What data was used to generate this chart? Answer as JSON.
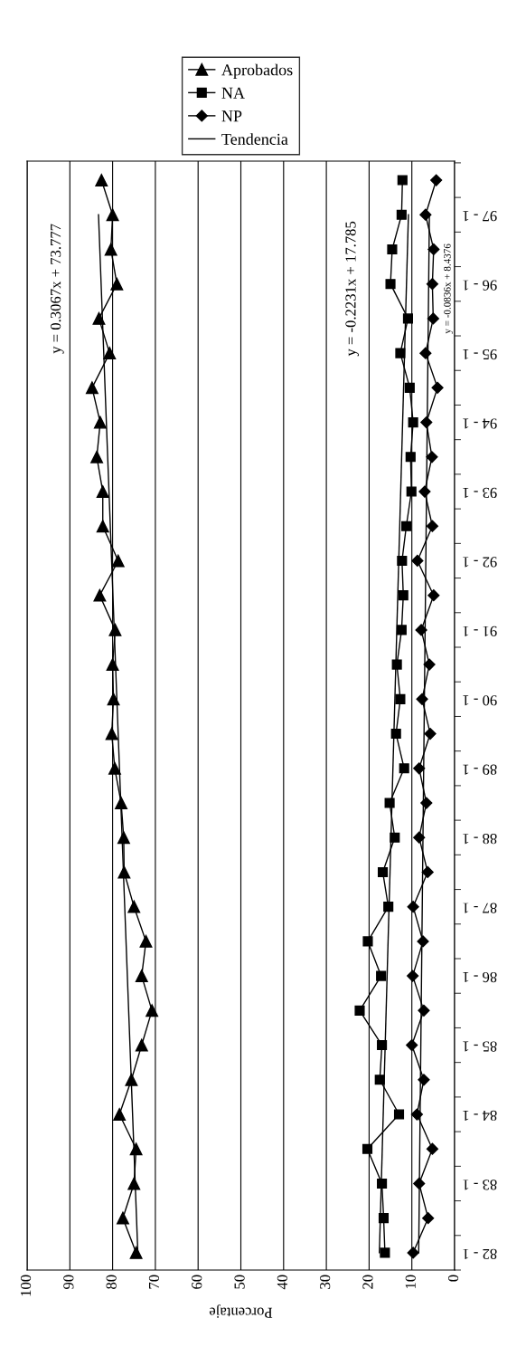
{
  "chart_data": {
    "type": "line",
    "orientation": "horizontal",
    "xlabel": "Porcentaje",
    "categories": [
      null,
      "97 - 1",
      null,
      "96 - 1",
      null,
      "95 - 1",
      null,
      "94 - 1",
      null,
      "93 - 1",
      null,
      "92 - 1",
      null,
      "91 - 1",
      null,
      "90 - 1",
      null,
      "89 - 1",
      null,
      "88 - 1",
      null,
      "87 - 1",
      null,
      "86 - 1",
      null,
      "85 - 1",
      null,
      "84 - 1",
      null,
      "83 - 1",
      null,
      "82 - 1"
    ],
    "series": [
      {
        "name": "Aprobados",
        "color": "#000000",
        "marker": "triangle",
        "values": [
          82.6,
          80.0,
          80.4,
          79.0,
          83.2,
          80.7,
          84.8,
          82.9,
          83.7,
          82.3,
          82.3,
          78.7,
          83.0,
          79.4,
          80.0,
          79.8,
          80.2,
          79.5,
          78.0,
          77.4,
          77.3,
          75.0,
          72.2,
          73.2,
          70.8,
          73.2,
          75.6,
          78.4,
          74.5,
          75.0,
          77.6,
          74.5
        ]
      },
      {
        "name": "NA",
        "color": "#000000",
        "marker": "square",
        "values": [
          12.2,
          12.4,
          14.6,
          15.0,
          10.9,
          12.7,
          10.5,
          9.7,
          10.3,
          10.1,
          11.3,
          12.3,
          12.0,
          12.4,
          13.5,
          12.7,
          13.7,
          11.8,
          15.2,
          14.0,
          16.8,
          15.5,
          20.3,
          17.2,
          22.2,
          17.0,
          17.5,
          13.0,
          20.4,
          17.0,
          16.6,
          16.3
        ]
      },
      {
        "name": "NP",
        "color": "#000000",
        "marker": "diamond",
        "values": [
          4.3,
          6.8,
          4.9,
          5.2,
          5.0,
          6.8,
          4.0,
          6.6,
          5.3,
          7.0,
          5.2,
          8.7,
          4.9,
          7.8,
          5.9,
          7.6,
          5.7,
          8.3,
          6.6,
          8.3,
          6.3,
          9.7,
          7.4,
          9.8,
          7.2,
          10.0,
          7.2,
          8.8,
          5.2,
          8.3,
          6.2,
          9.7
        ]
      },
      {
        "name": "Tendencia",
        "color": "#000000",
        "marker": "none",
        "x": [
          "97 - 1",
          "82 - 1"
        ],
        "values": [
          83.3,
          74.1
        ]
      },
      {
        "color": "#000000",
        "marker": "none",
        "x": [
          "97 - 1",
          "82 - 1"
        ],
        "values": [
          10.8,
          17.6
        ]
      },
      {
        "color": "#000000",
        "marker": "none",
        "x": [
          "97 - 1",
          "82 - 1"
        ],
        "values": [
          5.9,
          8.4
        ]
      }
    ],
    "xlim": [
      100,
      0
    ],
    "xticks": [
      0,
      10,
      20,
      30,
      40,
      50,
      60,
      70,
      80,
      90,
      100
    ],
    "grid": "x",
    "legend": "top",
    "line_style": "solid",
    "annotations": [
      "y = 0.3067x + 73.777",
      "y = -0.2231x + 17.785",
      "y = -0.0836x + 8.4376"
    ]
  }
}
